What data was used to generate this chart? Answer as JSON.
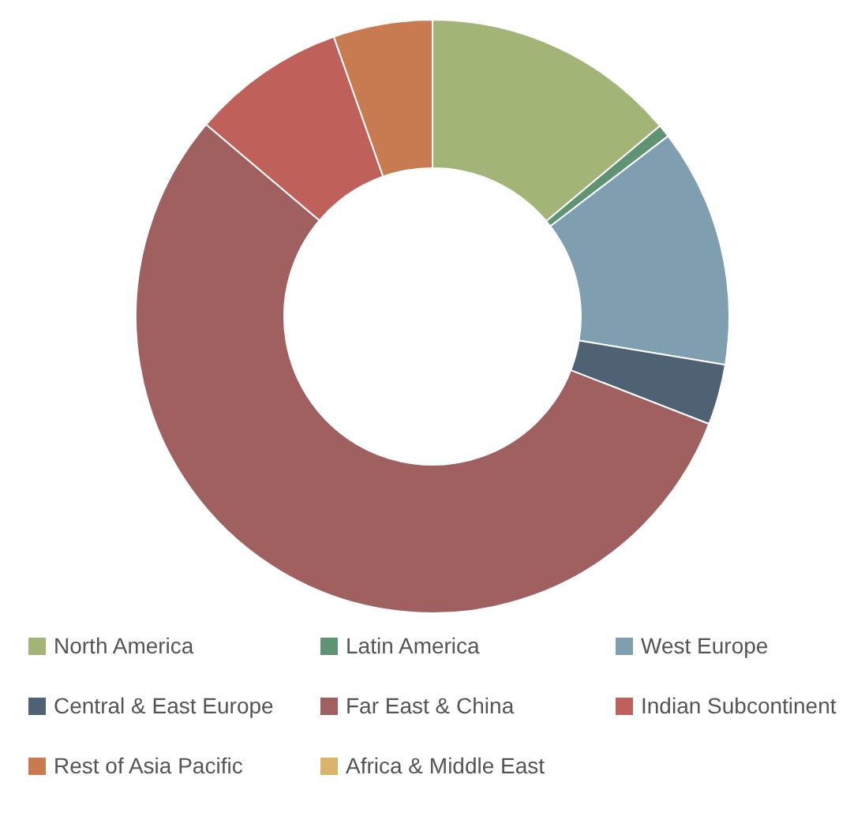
{
  "chart_data": {
    "type": "donut",
    "categories": [
      "North America",
      "Latin America",
      "West Europe",
      "Central & East Europe",
      "Far East & China",
      "Indian Subcontinent",
      "Rest of Asia Pacific",
      "Africa & Middle East"
    ],
    "values": [
      13.9,
      0.7,
      13.0,
      3.3,
      55.3,
      8.4,
      5.4,
      0
    ],
    "colors": [
      "#a3b576",
      "#5f9373",
      "#7f9fb0",
      "#4e6274",
      "#a06060",
      "#c0605a",
      "#c87b50",
      "#d9b46a"
    ],
    "legend": "bottom"
  }
}
